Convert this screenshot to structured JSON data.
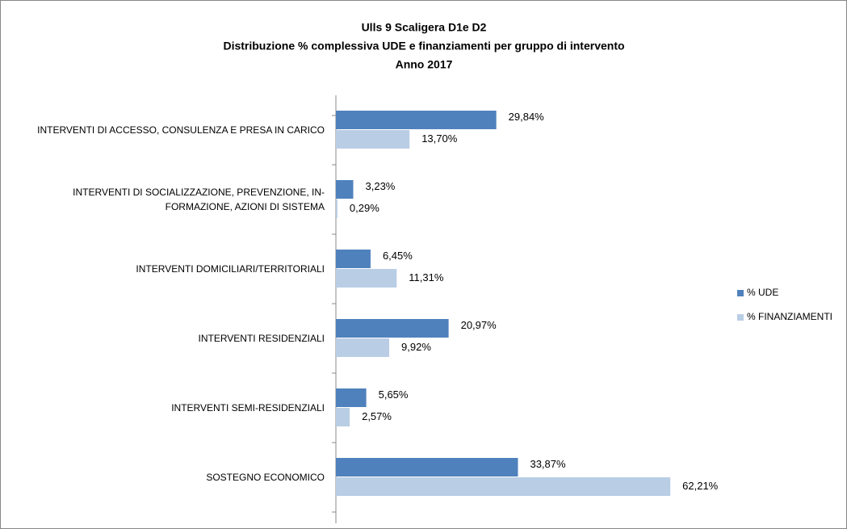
{
  "chart_data": {
    "type": "bar",
    "orientation": "horizontal",
    "title": [
      "Ulls 9 Scaligera D1e  D2",
      "Distribuzione % complessiva UDE e finanziamenti per gruppo di intervento",
      "Anno 2017"
    ],
    "categories": [
      "INTERVENTI DI ACCESSO, CONSULENZA E PRESA IN CARICO",
      "INTERVENTI DI SOCIALIZZAZIONE, PREVENZIONE, IN-\nFORMAZIONE, AZIONI DI SISTEMA",
      "INTERVENTI DOMICILIARI/TERRITORIALI",
      "INTERVENTI RESIDENZIALI",
      "INTERVENTI SEMI-RESIDENZIALI",
      "SOSTEGNO ECONOMICO"
    ],
    "series": [
      {
        "name": "% UDE",
        "color": "#4f81bd",
        "values": [
          29.84,
          3.23,
          6.45,
          20.97,
          5.65,
          33.87
        ],
        "value_labels": [
          "29,84%",
          "3,23%",
          "6,45%",
          "20,97%",
          "5,65%",
          "33,87%"
        ]
      },
      {
        "name": "% FINANZIAMENTI",
        "color": "#b9cde5",
        "values": [
          13.7,
          0.29,
          11.31,
          9.92,
          2.57,
          62.21
        ],
        "value_labels": [
          "13,70%",
          "0,29%",
          "11,31%",
          "9,92%",
          "2,57%",
          "62,21%"
        ]
      }
    ],
    "xlim": [
      0,
      70
    ],
    "legend": "right"
  }
}
